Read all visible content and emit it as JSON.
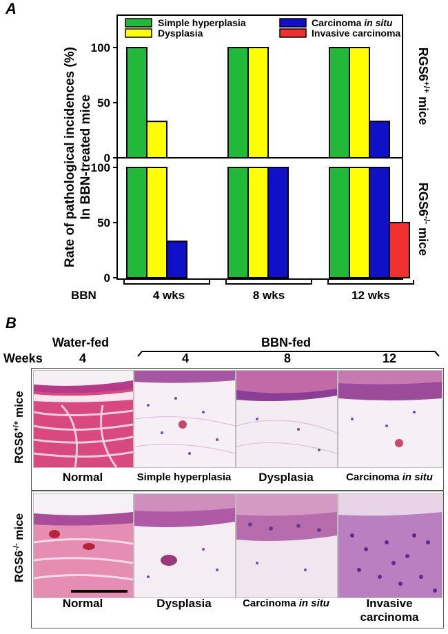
{
  "panel_a": {
    "letter": "A",
    "y_label_line1": "Rate of pathological incidences (%)",
    "y_label_line2": "In BBN-treated mice",
    "row_labels": [
      {
        "name": "RGS6",
        "sup": "+/+",
        "suffix": " mice"
      },
      {
        "name": "RGS6",
        "sup": "-/-",
        "suffix": " mice"
      }
    ],
    "bbn_label": "BBN",
    "group_labels": [
      "4 wks",
      "8 wks",
      "12 wks"
    ],
    "legend": [
      {
        "label": "Simple hyperplasia",
        "italic": "",
        "color": "#22b83a"
      },
      {
        "label": "Dysplasia",
        "italic": "",
        "color": "#ffff00"
      },
      {
        "label": "Carcinoma ",
        "italic": "in situ",
        "color": "#1010c8"
      },
      {
        "label": "Invasive carcinoma",
        "italic": "",
        "color": "#f03030"
      }
    ]
  },
  "chart_data": [
    {
      "type": "bar",
      "subplot": "RGS6+/+ mice",
      "categories": [
        "4 wks",
        "8 wks",
        "12 wks"
      ],
      "series": [
        {
          "name": "Simple hyperplasia",
          "values": [
            100,
            100,
            100
          ]
        },
        {
          "name": "Dysplasia",
          "values": [
            33,
            100,
            100
          ]
        },
        {
          "name": "Carcinoma in situ",
          "values": [
            0,
            0,
            33
          ]
        },
        {
          "name": "Invasive carcinoma",
          "values": [
            0,
            0,
            0
          ]
        }
      ],
      "ylim": [
        0,
        125
      ],
      "yticks": [
        "0",
        "50",
        "100"
      ]
    },
    {
      "type": "bar",
      "subplot": "RGS6-/- mice",
      "categories": [
        "4 wks",
        "8 wks",
        "12 wks"
      ],
      "series": [
        {
          "name": "Simple hyperplasia",
          "values": [
            100,
            100,
            100
          ]
        },
        {
          "name": "Dysplasia",
          "values": [
            100,
            100,
            100
          ]
        },
        {
          "name": "Carcinoma in situ",
          "values": [
            33,
            100,
            100
          ]
        },
        {
          "name": "Invasive carcinoma",
          "values": [
            0,
            0,
            50
          ]
        }
      ],
      "ylim": [
        0,
        100
      ],
      "yticks": [
        "0",
        "50",
        "100"
      ]
    }
  ],
  "panel_b": {
    "letter": "B",
    "water_fed": "Water-fed",
    "bbn_fed": "BBN-fed",
    "weeks_label": "Weeks",
    "weeks": [
      "4",
      "4",
      "8",
      "12"
    ],
    "row_labels": [
      {
        "name": "RGS6",
        "sup": "+/+",
        "suffix": " mice"
      },
      {
        "name": "RGS6",
        "sup": "-/-",
        "suffix": " mice"
      }
    ],
    "row1_captions": [
      {
        "text": "Normal",
        "italic": ""
      },
      {
        "text": "Simple hyperplasia",
        "italic": ""
      },
      {
        "text": "Dysplasia",
        "italic": ""
      },
      {
        "text": "Carcinoma ",
        "italic": "in situ"
      }
    ],
    "row2_captions": [
      {
        "text": "Normal",
        "italic": ""
      },
      {
        "text": "Dysplasia",
        "italic": ""
      },
      {
        "text": "Carcinoma ",
        "italic": "in situ"
      },
      {
        "text": "Invasive",
        "line2": "carcinoma"
      }
    ],
    "colors": {
      "tissue_pink": "#e7a7c4",
      "tissue_purple": "#8a4aa6",
      "tissue_pale": "#f5eef4"
    }
  }
}
